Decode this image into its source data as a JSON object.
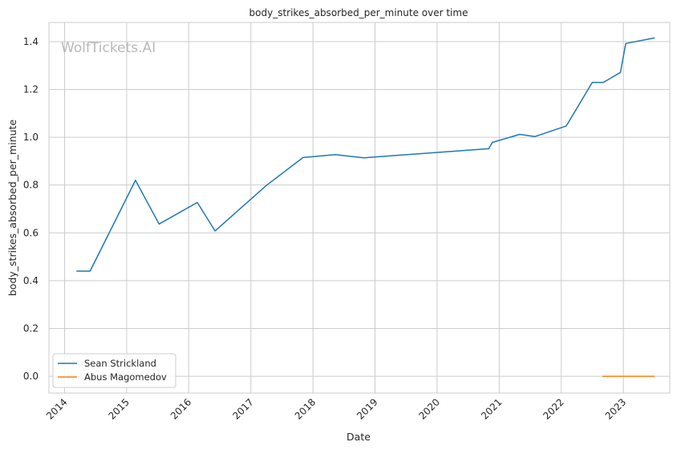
{
  "chart_data": {
    "type": "line",
    "title": "body_strikes_absorbed_per_minute over time",
    "xlabel": "Date",
    "ylabel": "body_strikes_absorbed_per_minute",
    "watermark": "WolfTickets.AI",
    "xlim": [
      "2013-10-01",
      "2023-10-01"
    ],
    "ylim": [
      -0.07,
      1.48
    ],
    "grid": true,
    "legend_position": "lower-left",
    "x_ticks": [
      {
        "date": "2014-01-01",
        "label": "2014"
      },
      {
        "date": "2015-01-01",
        "label": "2015"
      },
      {
        "date": "2016-01-01",
        "label": "2016"
      },
      {
        "date": "2017-01-01",
        "label": "2017"
      },
      {
        "date": "2018-01-01",
        "label": "2018"
      },
      {
        "date": "2019-01-01",
        "label": "2019"
      },
      {
        "date": "2020-01-01",
        "label": "2020"
      },
      {
        "date": "2021-01-01",
        "label": "2021"
      },
      {
        "date": "2022-01-01",
        "label": "2022"
      },
      {
        "date": "2023-01-01",
        "label": "2023"
      }
    ],
    "y_ticks": [
      {
        "value": 0.0,
        "label": "0.0"
      },
      {
        "value": 0.2,
        "label": "0.2"
      },
      {
        "value": 0.4,
        "label": "0.4"
      },
      {
        "value": 0.6,
        "label": "0.6"
      },
      {
        "value": 0.8,
        "label": "0.8"
      },
      {
        "value": 1.0,
        "label": "1.0"
      },
      {
        "value": 1.2,
        "label": "1.2"
      },
      {
        "value": 1.4,
        "label": "1.4"
      }
    ],
    "series": [
      {
        "name": "Sean Strickland",
        "color": "#1f77b4",
        "points": [
          [
            "2014-03-15",
            0.44
          ],
          [
            "2014-05-31",
            0.44
          ],
          [
            "2015-02-22",
            0.82
          ],
          [
            "2015-07-11",
            0.637
          ],
          [
            "2016-02-21",
            0.727
          ],
          [
            "2016-06-04",
            0.608
          ],
          [
            "2017-04-01",
            0.798
          ],
          [
            "2017-11-04",
            0.915
          ],
          [
            "2018-05-12",
            0.927
          ],
          [
            "2018-10-27",
            0.914
          ],
          [
            "2020-10-31",
            0.952
          ],
          [
            "2020-11-21",
            0.978
          ],
          [
            "2021-05-01",
            1.012
          ],
          [
            "2021-07-31",
            1.003
          ],
          [
            "2022-01-30",
            1.047
          ],
          [
            "2022-07-02",
            1.229
          ],
          [
            "2022-09-05",
            1.229
          ],
          [
            "2022-12-15",
            1.271
          ],
          [
            "2023-01-15",
            1.392
          ],
          [
            "2023-07-01",
            1.415
          ]
        ]
      },
      {
        "name": "Abus Magomedov",
        "color": "#ff7f0e",
        "points": [
          [
            "2022-09-03",
            0.0
          ],
          [
            "2023-07-01",
            0.0
          ]
        ]
      }
    ]
  }
}
